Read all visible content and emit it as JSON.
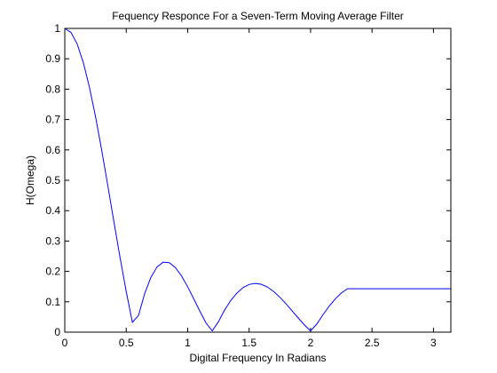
{
  "chart_data": {
    "type": "line",
    "title": "Fequency Responce For a Seven-Term Moving Average Filter",
    "xlabel": "Digital Frequency In Radians",
    "ylabel": "H(Omega)",
    "xlim": [
      0,
      3.1416
    ],
    "ylim": [
      0,
      1
    ],
    "grid": false,
    "x_ticks": [
      0,
      0.5,
      1,
      1.5,
      2,
      2.5,
      3
    ],
    "x_tick_labels": [
      "0",
      "0.5",
      "1",
      "1.5",
      "2",
      "2.5",
      "3"
    ],
    "y_ticks": [
      0,
      0.1,
      0.2,
      0.3,
      0.4,
      0.5,
      0.6,
      0.7,
      0.8,
      0.9,
      1
    ],
    "y_tick_labels": [
      "0",
      "0.1",
      "0.2",
      "0.3",
      "0.4",
      "0.5",
      "0.6",
      "0.7",
      "0.8",
      "0.9",
      "1"
    ],
    "series": [
      {
        "color": "#0000ff",
        "x": [
          0,
          0.05,
          0.1,
          0.15,
          0.2,
          0.25,
          0.3,
          0.35,
          0.4,
          0.45,
          0.5,
          0.55,
          0.6,
          0.65,
          0.7,
          0.75,
          0.8,
          0.85,
          0.9,
          0.95,
          1.0,
          1.05,
          1.1,
          1.15,
          1.2,
          1.25,
          1.3,
          1.35,
          1.4,
          1.45,
          1.5,
          1.55,
          1.6,
          1.65,
          1.7,
          1.75,
          1.8,
          1.85,
          1.9,
          1.95,
          2.0,
          2.05,
          2.1,
          2.15,
          2.2,
          2.25,
          2.3,
          2.35,
          2.4,
          2.45,
          2.5,
          2.55,
          2.6,
          2.65,
          2.7,
          2.75,
          2.8,
          2.85,
          2.9,
          2.95,
          3.0,
          3.05,
          3.1,
          3.1416
        ],
        "y": [
          1.0,
          0.9871,
          0.9495,
          0.8887,
          0.8075,
          0.7098,
          0.5999,
          0.4827,
          0.3629,
          0.2451,
          0.1337,
          0.0325,
          0.0551,
          0.1267,
          0.1799,
          0.2144,
          0.2301,
          0.2287,
          0.2127,
          0.185,
          0.1493,
          0.1094,
          0.0683,
          0.0296,
          0.0042,
          0.0341,
          0.0726,
          0.1041,
          0.1284,
          0.1464,
          0.157,
          0.1605,
          0.1575,
          0.1483,
          0.1337,
          0.115,
          0.0934,
          0.07,
          0.0464,
          0.0238,
          0.004,
          0.0263,
          0.0566,
          0.0848,
          0.1091,
          0.1287,
          0.1429,
          0.1429,
          0.1429,
          0.1429,
          0.1429,
          0.1429,
          0.1429,
          0.1429,
          0.1429,
          0.1429,
          0.1429,
          0.1429,
          0.1429,
          0.1429,
          0.1429,
          0.1429,
          0.1429,
          0.1429
        ]
      }
    ]
  }
}
